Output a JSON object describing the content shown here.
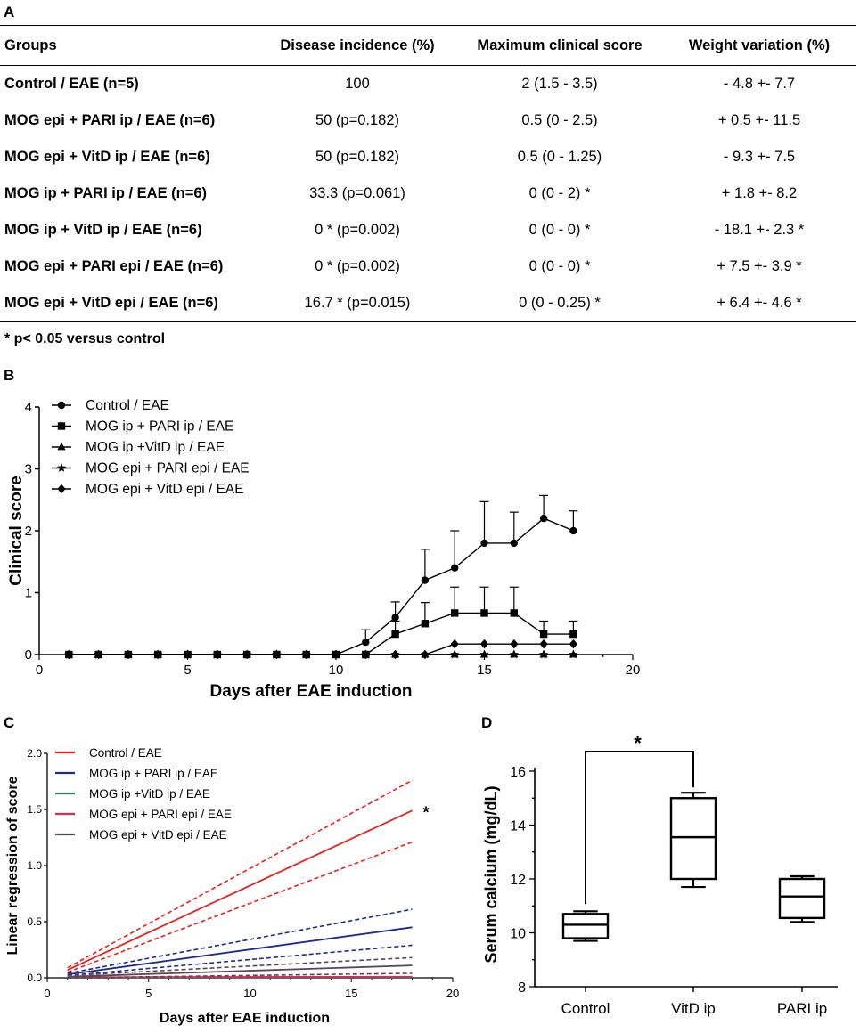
{
  "panel_a": {
    "letter": "A",
    "headers": [
      "Groups",
      "Disease incidence (%)",
      "Maximum clinical score",
      "Weight variation (%)"
    ],
    "rows": [
      [
        "Control / EAE (n=5)",
        "100",
        "2 (1.5 - 3.5)",
        "- 4.8 +- 7.7"
      ],
      [
        "MOG epi +  PARI ip / EAE (n=6)",
        "50 (p=0.182)",
        "0.5 (0 - 2.5)",
        "+ 0.5 +- 11.5"
      ],
      [
        "MOG epi + VitD ip / EAE (n=6)",
        "50 (p=0.182)",
        "0.5 (0 - 1.25)",
        "- 9.3 +- 7.5"
      ],
      [
        "MOG ip +  PARI ip / EAE (n=6)",
        "33.3 (p=0.061)",
        "0 (0 - 2) *",
        "+ 1.8 +- 8.2"
      ],
      [
        "MOG ip + VitD ip / EAE (n=6)",
        "0 * (p=0.002)",
        "0 (0 - 0) *",
        "- 18.1 +- 2.3 *"
      ],
      [
        "MOG epi + PARI epi / EAE (n=6)",
        "0 * (p=0.002)",
        "0 (0 - 0) *",
        "+ 7.5 +-  3.9 *"
      ],
      [
        "MOG epi + VitD epi / EAE (n=6)",
        "16.7 * (p=0.015)",
        "0 (0 - 0.25) *",
        "+ 6.4 +-  4.6 *"
      ]
    ],
    "footnote": "* p< 0.05 versus control"
  },
  "chart_data": [
    {
      "panel": "B",
      "type": "line",
      "xlabel": "Days after EAE induction",
      "ylabel": "Clinical score",
      "xlim": [
        0,
        20
      ],
      "ylim": [
        0,
        4
      ],
      "xticks": [
        0,
        5,
        10,
        15,
        20
      ],
      "yticks": [
        0,
        1,
        2,
        3,
        4
      ],
      "x": [
        1,
        2,
        3,
        4,
        5,
        6,
        7,
        8,
        9,
        10,
        11,
        12,
        13,
        14,
        15,
        16,
        17,
        18
      ],
      "series": [
        {
          "name": "Control / EAE",
          "marker": "circle",
          "values": [
            0,
            0,
            0,
            0,
            0,
            0,
            0,
            0,
            0,
            0,
            0.2,
            0.6,
            1.2,
            1.4,
            1.8,
            1.8,
            2.2,
            2.0
          ],
          "err": [
            0,
            0,
            0,
            0,
            0,
            0,
            0,
            0,
            0,
            0,
            0.2,
            0.25,
            0.5,
            0.6,
            0.67,
            0.5,
            0.37,
            0.32
          ]
        },
        {
          "name": "MOG ip + PARI ip / EAE",
          "marker": "square",
          "values": [
            0,
            0,
            0,
            0,
            0,
            0,
            0,
            0,
            0,
            0,
            0,
            0.33,
            0.5,
            0.67,
            0.67,
            0.67,
            0.33,
            0.33
          ],
          "err": [
            0,
            0,
            0,
            0,
            0,
            0,
            0,
            0,
            0,
            0,
            0,
            0.21,
            0.34,
            0.42,
            0.42,
            0.42,
            0.21,
            0.21
          ]
        },
        {
          "name": "MOG ip +VitD ip / EAE",
          "marker": "triangle",
          "values": [
            0,
            0,
            0,
            0,
            0,
            0,
            0,
            0,
            0,
            0,
            0,
            0,
            0,
            0,
            0,
            0,
            0,
            0
          ],
          "err": [
            0,
            0,
            0,
            0,
            0,
            0,
            0,
            0,
            0,
            0,
            0,
            0,
            0,
            0,
            0,
            0,
            0,
            0
          ]
        },
        {
          "name": "MOG epi + PARI epi / EAE",
          "marker": "star",
          "values": [
            0,
            0,
            0,
            0,
            0,
            0,
            0,
            0,
            0,
            0,
            0,
            0,
            0,
            0,
            0,
            0,
            0,
            0
          ],
          "err": [
            0,
            0,
            0,
            0,
            0,
            0,
            0,
            0,
            0,
            0,
            0,
            0,
            0,
            0,
            0,
            0,
            0,
            0
          ]
        },
        {
          "name": "MOG epi + VitD epi / EAE",
          "marker": "diamond",
          "values": [
            0,
            0,
            0,
            0,
            0,
            0,
            0,
            0,
            0,
            0,
            0,
            0,
            0,
            0.17,
            0.17,
            0.17,
            0.17,
            0.17
          ],
          "err": [
            0,
            0,
            0,
            0,
            0,
            0,
            0,
            0,
            0,
            0,
            0,
            0,
            0,
            0,
            0,
            0,
            0,
            0
          ]
        }
      ]
    },
    {
      "panel": "C",
      "type": "line",
      "xlabel": "Days after EAE induction",
      "ylabel": "Linear regression of score",
      "xlim": [
        0,
        20
      ],
      "ylim": [
        0,
        2.0
      ],
      "xticks": [
        0,
        5,
        10,
        15,
        20
      ],
      "yticks": [
        "0.0",
        "0.5",
        "1.0",
        "1.5",
        "2.0"
      ],
      "x_range": [
        1,
        18
      ],
      "annotation": "*",
      "series": [
        {
          "name": "Control / EAE",
          "color": "#e8231e",
          "line": [
            0.07,
            1.49
          ],
          "ci_upper": [
            0.09,
            1.76
          ],
          "ci_lower": [
            0.05,
            1.21
          ]
        },
        {
          "name": "MOG ip + PARI ip / EAE",
          "color": "#1d2c8f",
          "line": [
            0.03,
            0.45
          ],
          "ci_upper": [
            0.04,
            0.61
          ],
          "ci_lower": [
            0.02,
            0.29
          ]
        },
        {
          "name": "MOG ip +VitD ip / EAE",
          "color": "#2f7a5c",
          "line": [
            0.0,
            0.0
          ],
          "ci_upper": [
            0.0,
            0.0
          ],
          "ci_lower": [
            0.0,
            0.0
          ]
        },
        {
          "name": "MOG epi + PARI epi / EAE",
          "color": "#e6245a",
          "line": [
            0.005,
            0.01
          ],
          "ci_upper": [
            0.005,
            0.01
          ],
          "ci_lower": [
            0.005,
            0.01
          ]
        },
        {
          "name": "MOG epi + VitD epi / EAE",
          "color": "#5a4655",
          "line": [
            0.01,
            0.11
          ],
          "ci_upper": [
            0.02,
            0.18
          ],
          "ci_lower": [
            0.0,
            0.04
          ]
        }
      ]
    },
    {
      "panel": "D",
      "type": "box",
      "ylabel": "Serum calcium (mg/dL)",
      "ylim": [
        8,
        16
      ],
      "yticks": [
        8,
        10,
        12,
        14,
        16
      ],
      "categories": [
        "Control",
        "VitD ip",
        "PARI ip"
      ],
      "boxes": [
        {
          "min": 9.7,
          "q1": 9.8,
          "median": 10.3,
          "q3": 10.7,
          "max": 10.8
        },
        {
          "min": 11.7,
          "q1": 12.0,
          "median": 13.55,
          "q3": 15.0,
          "max": 15.2
        },
        {
          "min": 10.4,
          "q1": 10.55,
          "median": 11.35,
          "q3": 12.0,
          "max": 12.1
        }
      ],
      "significance": {
        "from": "Control",
        "to": "VitD ip",
        "label": "*"
      }
    }
  ],
  "panel_letters": {
    "b": "B",
    "c": "C",
    "d": "D"
  }
}
